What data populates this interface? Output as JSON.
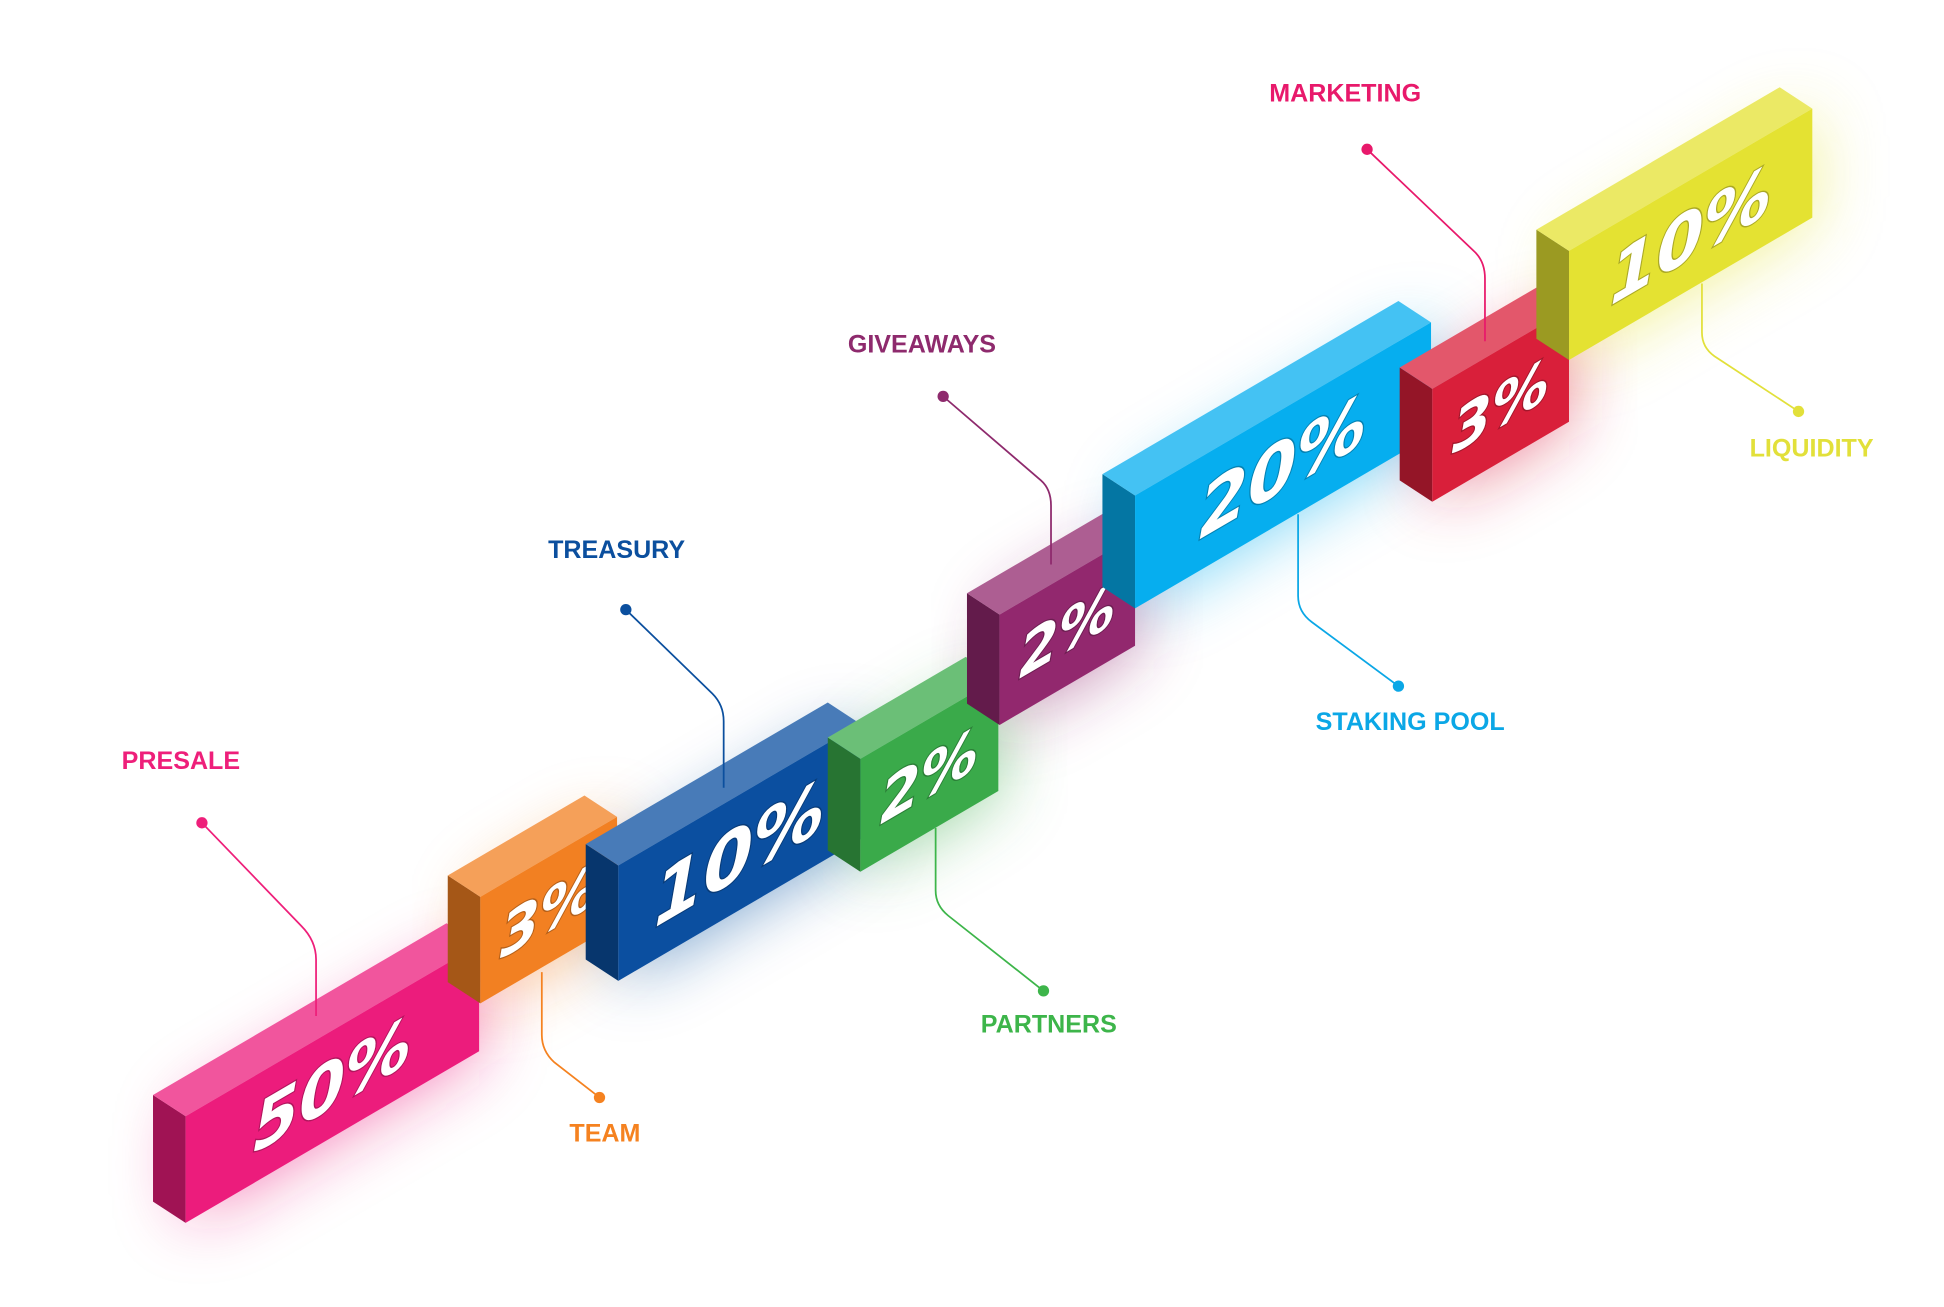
{
  "chart_data": {
    "type": "bar",
    "style": "isometric segmented bar",
    "unit": "%",
    "categories": [
      "PRESALE",
      "TEAM",
      "TREASURY",
      "PARTNERS",
      "GIVEAWAYS",
      "STAKING POOL",
      "MARKETING",
      "LIQUIDITY"
    ],
    "values": [
      50,
      3,
      10,
      2,
      2,
      20,
      3,
      10
    ],
    "value_labels": [
      "50%",
      "3%",
      "10%",
      "2%",
      "2%",
      "20%",
      "3%",
      "10%"
    ],
    "colors": [
      "#ec1c7c",
      "#f28022",
      "#0b4fa0",
      "#3aaa4a",
      "#92286e",
      "#06aeef",
      "#d91f3a",
      "#e4e232"
    ],
    "label_colors": [
      "#ee1f7a",
      "#f58220",
      "#0b4f9e",
      "#3db54a",
      "#8e2a6d",
      "#0ba7e6",
      "#e8196b",
      "#e2e03a"
    ]
  }
}
